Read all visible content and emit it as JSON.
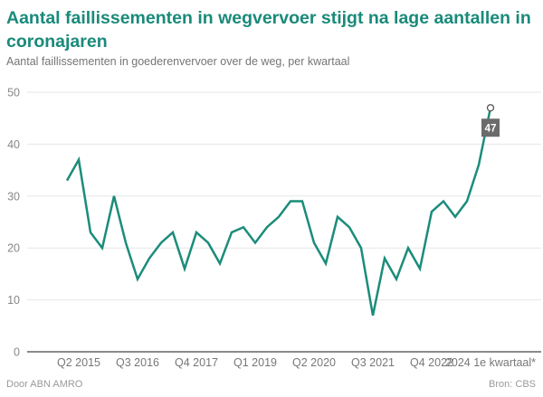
{
  "header": {
    "title": "Aantal faillissementen in wegvervoer stijgt na lage aantallen in coronajaren",
    "subtitle": "Aantal faillissementen in goederenvervoer over de weg, per kwartaal"
  },
  "footer": {
    "credit": "Door ABN AMRO",
    "source": "Bron: CBS"
  },
  "colors": {
    "title": "#1a8a7a",
    "line": "#1b8c7a",
    "label_box": "#6b6b6b"
  },
  "chart_data": {
    "type": "line",
    "title": "Aantal faillissementen in wegvervoer stijgt na lage aantallen in coronajaren",
    "subtitle": "Aantal faillissementen in goederenvervoer over de weg, per kwartaal",
    "xlabel": "",
    "ylabel": "",
    "ylim": [
      0,
      50
    ],
    "yticks": [
      0,
      10,
      20,
      30,
      40,
      50
    ],
    "grid": true,
    "x": [
      "Q1 2015",
      "Q2 2015",
      "Q3 2015",
      "Q4 2015",
      "Q1 2016",
      "Q2 2016",
      "Q3 2016",
      "Q4 2016",
      "Q1 2017",
      "Q2 2017",
      "Q3 2017",
      "Q4 2017",
      "Q1 2018",
      "Q2 2018",
      "Q3 2018",
      "Q4 2018",
      "Q1 2019",
      "Q2 2019",
      "Q3 2019",
      "Q4 2019",
      "Q1 2020",
      "Q2 2020",
      "Q3 2020",
      "Q4 2020",
      "Q1 2021",
      "Q2 2021",
      "Q3 2021",
      "Q4 2021",
      "Q1 2022",
      "Q2 2022",
      "Q3 2022",
      "Q4 2022",
      "Q1 2023",
      "Q2 2023",
      "Q3 2023",
      "Q4 2023",
      "2024 1e kwartaal*"
    ],
    "xtick_labels": [
      {
        "index": 1,
        "label": "Q2 2015"
      },
      {
        "index": 6,
        "label": "Q3 2016"
      },
      {
        "index": 11,
        "label": "Q4 2017"
      },
      {
        "index": 16,
        "label": "Q1 2019"
      },
      {
        "index": 21,
        "label": "Q2 2020"
      },
      {
        "index": 26,
        "label": "Q3 2021"
      },
      {
        "index": 31,
        "label": "Q4 2022"
      },
      {
        "index": 36,
        "label": "2024 1e kwartaal*"
      }
    ],
    "series": [
      {
        "name": "Faillissementen",
        "values": [
          33,
          37,
          23,
          20,
          30,
          21,
          14,
          18,
          21,
          23,
          16,
          23,
          21,
          17,
          23,
          24,
          21,
          24,
          26,
          29,
          29,
          21,
          17,
          26,
          24,
          20,
          7,
          18,
          14,
          20,
          16,
          27,
          29,
          26,
          29,
          36,
          47
        ]
      }
    ],
    "annotations": [
      {
        "index": 36,
        "label": "47"
      }
    ]
  }
}
